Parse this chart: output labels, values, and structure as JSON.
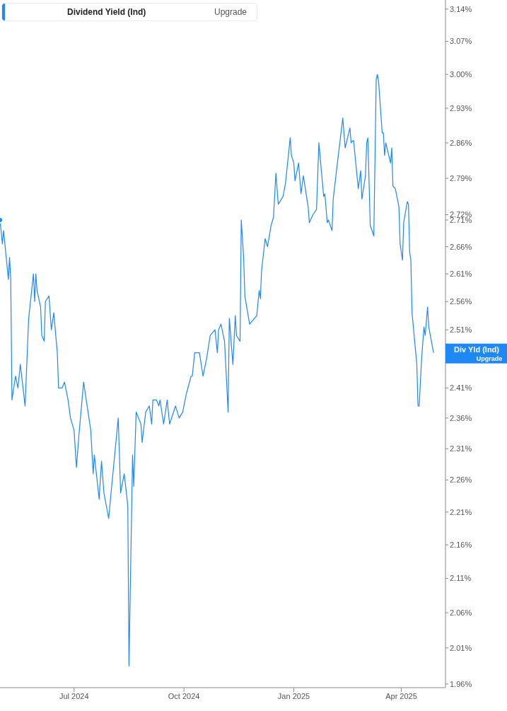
{
  "chart_data": {
    "type": "line",
    "legend": "top left",
    "marker": "none",
    "line_style": "solid",
    "log": "y",
    "xlim": [
      "2024-04-30",
      "2025-05-08"
    ],
    "xticks": [
      {
        "value": "2024-07-01",
        "label": "Jul 2024"
      },
      {
        "value": "2024-10-01",
        "label": "Oct 2024"
      },
      {
        "value": "2025-01-01",
        "label": "Jan 2025"
      },
      {
        "value": "2025-04-01",
        "label": "Apr 2025"
      }
    ],
    "ylim": [
      1.955,
      3.16
    ],
    "yticks": [
      {
        "value": 3.14,
        "label": "3.14%"
      },
      {
        "value": 3.07,
        "label": "3.07%"
      },
      {
        "value": 3.0,
        "label": "3.00%"
      },
      {
        "value": 2.93,
        "label": "2.93%"
      },
      {
        "value": 2.86,
        "label": "2.86%"
      },
      {
        "value": 2.79,
        "label": "2.79%"
      },
      {
        "value": 2.72,
        "label": "2.72%"
      },
      {
        "value": 2.71,
        "label": "2.71%"
      },
      {
        "value": 2.66,
        "label": "2.66%"
      },
      {
        "value": 2.61,
        "label": "2.61%"
      },
      {
        "value": 2.56,
        "label": "2.56%"
      },
      {
        "value": 2.51,
        "label": "2.51%"
      },
      {
        "value": 2.41,
        "label": "2.41%"
      },
      {
        "value": 2.36,
        "label": "2.36%"
      },
      {
        "value": 2.31,
        "label": "2.31%"
      },
      {
        "value": 2.26,
        "label": "2.26%"
      },
      {
        "value": 2.21,
        "label": "2.21%"
      },
      {
        "value": 2.16,
        "label": "2.16%"
      },
      {
        "value": 2.11,
        "label": "2.11%"
      },
      {
        "value": 2.06,
        "label": "2.06%"
      },
      {
        "value": 2.01,
        "label": "2.01%"
      },
      {
        "value": 1.96,
        "label": "1.96%"
      }
    ],
    "annotations": [
      "Upgrade",
      {
        "text": "Div Yld (Ind)",
        "x": "2025-04-28",
        "y": 2.47
      },
      "Upgrade"
    ],
    "x": [
      "2024-04-30",
      "2024-05-02",
      "2024-05-03",
      "2024-05-07",
      "2024-05-08",
      "2024-05-09",
      "2024-05-10",
      "2024-05-13",
      "2024-05-15",
      "2024-05-17",
      "2024-05-21",
      "2024-05-24",
      "2024-05-28",
      "2024-05-29",
      "2024-05-30",
      "2024-05-31",
      "2024-06-03",
      "2024-06-04",
      "2024-06-06",
      "2024-06-07",
      "2024-06-10",
      "2024-06-12",
      "2024-06-14",
      "2024-06-17",
      "2024-06-18",
      "2024-06-21",
      "2024-06-23",
      "2024-06-26",
      "2024-06-28",
      "2024-07-01",
      "2024-07-03",
      "2024-07-05",
      "2024-07-09",
      "2024-07-15",
      "2024-07-17",
      "2024-07-18",
      "2024-07-22",
      "2024-07-24",
      "2024-07-26",
      "2024-07-30",
      "2024-08-01",
      "2024-08-07",
      "2024-08-09",
      "2024-08-12",
      "2024-08-15",
      "2024-08-16",
      "2024-08-19",
      "2024-08-20",
      "2024-08-22",
      "2024-08-26",
      "2024-08-27",
      "2024-08-30",
      "2024-09-02",
      "2024-09-04",
      "2024-09-05",
      "2024-09-08",
      "2024-09-10",
      "2024-09-11",
      "2024-09-14",
      "2024-09-17",
      "2024-09-19",
      "2024-09-24",
      "2024-09-27",
      "2024-09-30",
      "2024-10-03",
      "2024-10-07",
      "2024-10-08",
      "2024-10-10",
      "2024-10-14",
      "2024-10-17",
      "2024-10-20",
      "2024-10-23",
      "2024-10-27",
      "2024-10-29",
      "2024-10-30",
      "2024-11-01",
      "2024-11-04",
      "2024-11-07",
      "2024-11-08",
      "2024-11-11",
      "2024-11-13",
      "2024-11-14",
      "2024-11-17",
      "2024-11-18",
      "2024-11-20",
      "2024-11-21",
      "2024-11-25",
      "2024-11-27",
      "2024-12-01",
      "2024-12-03",
      "2024-12-04",
      "2024-12-05",
      "2024-12-08",
      "2024-12-10",
      "2024-12-13",
      "2024-12-15",
      "2024-12-17",
      "2024-12-19",
      "2024-12-23",
      "2024-12-25",
      "2024-12-29",
      "2024-12-30",
      "2025-01-01",
      "2025-01-02",
      "2025-01-05",
      "2025-01-07",
      "2025-01-09",
      "2025-01-13",
      "2025-01-14",
      "2025-01-17",
      "2025-01-20",
      "2025-01-22",
      "2025-01-26",
      "2025-01-27",
      "2025-01-29",
      "2025-01-30",
      "2025-02-02",
      "2025-02-03",
      "2025-02-06",
      "2025-02-11",
      "2025-02-13",
      "2025-02-17",
      "2025-02-18",
      "2025-02-20",
      "2025-02-24",
      "2025-02-26",
      "2025-02-27",
      "2025-03-02",
      "2025-03-03",
      "2025-03-04",
      "2025-03-06",
      "2025-03-09",
      "2025-03-11",
      "2025-03-12",
      "2025-03-13",
      "2025-03-16",
      "2025-03-17",
      "2025-03-18",
      "2025-03-19",
      "2025-03-23",
      "2025-03-24",
      "2025-03-25",
      "2025-03-27",
      "2025-03-30",
      "2025-03-31",
      "2025-04-02",
      "2025-04-03",
      "2025-04-06",
      "2025-04-07",
      "2025-04-08",
      "2025-04-09",
      "2025-04-10",
      "2025-04-14",
      "2025-04-15",
      "2025-04-16",
      "2025-04-18",
      "2025-04-20",
      "2025-04-21",
      "2025-04-23",
      "2025-04-24",
      "2025-04-28"
    ],
    "series": [
      {
        "name": "Dividend Yield (Ind)",
        "color": "#1e88f5",
        "values": [
          2.71,
          2.665,
          2.69,
          2.6,
          2.64,
          2.6,
          2.39,
          2.43,
          2.41,
          2.45,
          2.38,
          2.53,
          2.61,
          2.56,
          2.61,
          2.58,
          2.55,
          2.5,
          2.49,
          2.56,
          2.57,
          2.51,
          2.54,
          2.47,
          2.41,
          2.41,
          2.42,
          2.39,
          2.36,
          2.34,
          2.28,
          2.33,
          2.42,
          2.34,
          2.27,
          2.3,
          2.23,
          2.29,
          2.24,
          2.2,
          2.24,
          2.36,
          2.24,
          2.27,
          2.22,
          1.985,
          2.3,
          2.25,
          2.37,
          2.35,
          2.32,
          2.37,
          2.38,
          2.35,
          2.39,
          2.39,
          2.38,
          2.39,
          2.35,
          2.39,
          2.35,
          2.38,
          2.36,
          2.37,
          2.4,
          2.43,
          2.43,
          2.47,
          2.47,
          2.43,
          2.46,
          2.5,
          2.51,
          2.47,
          2.51,
          2.52,
          2.49,
          2.37,
          2.53,
          2.45,
          2.535,
          2.5,
          2.49,
          2.71,
          2.64,
          2.57,
          2.52,
          2.525,
          2.535,
          2.58,
          2.565,
          2.615,
          2.675,
          2.66,
          2.7,
          2.715,
          2.8,
          2.74,
          2.755,
          2.78,
          2.87,
          2.835,
          2.82,
          2.785,
          2.82,
          2.76,
          2.795,
          2.735,
          2.705,
          2.72,
          2.73,
          2.86,
          2.755,
          2.76,
          2.705,
          2.71,
          2.69,
          2.75,
          2.81,
          2.91,
          2.85,
          2.89,
          2.86,
          2.865,
          2.77,
          2.805,
          2.75,
          2.795,
          2.86,
          2.87,
          2.7,
          2.68,
          2.99,
          3.0,
          2.985,
          2.88,
          2.88,
          2.835,
          2.86,
          2.82,
          2.85,
          2.775,
          2.77,
          2.735,
          2.665,
          2.635,
          2.705,
          2.745,
          2.74,
          2.65,
          2.635,
          2.54,
          2.45,
          2.38,
          2.38,
          2.46,
          2.515,
          2.5,
          2.55,
          2.515,
          2.47
        ]
      }
    ]
  }
}
